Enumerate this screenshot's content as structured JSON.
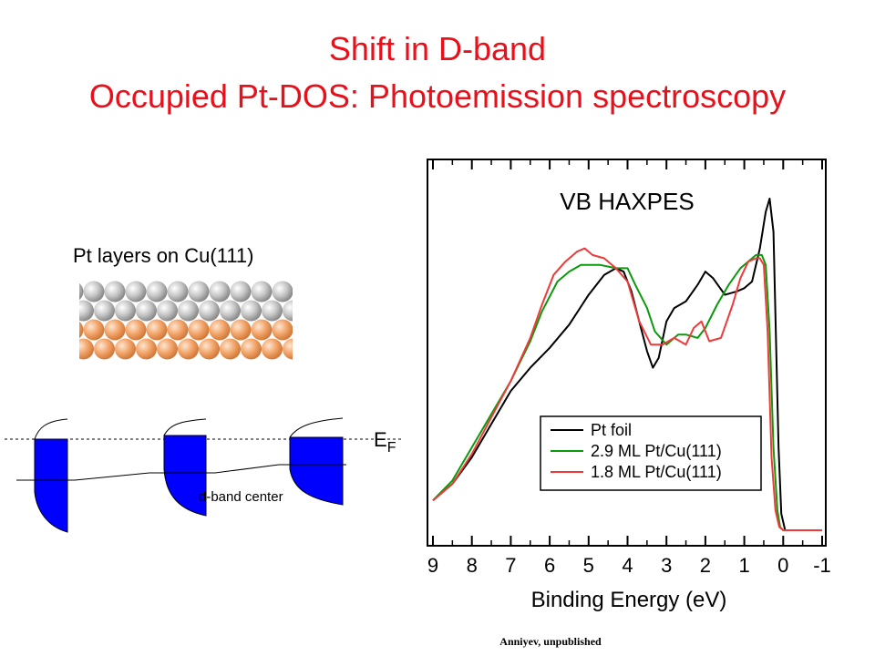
{
  "slide": {
    "title_line1": "Shift in D-band",
    "title_line2": "Occupied Pt-DOS: Photoemission spectroscopy",
    "credit": "Anniyev, unpublished",
    "title_color": "#e8101a"
  },
  "schematic": {
    "pt_label": "Pt layers on Cu(111)",
    "fermi_label_main": "E",
    "fermi_label_sub": "F",
    "dband_label": "d-band center",
    "band_color": "#0000ff",
    "pt_atom_color": "#b4b4b4",
    "cu_atom_color": "#f2a56b"
  },
  "chart_data": {
    "type": "line",
    "title": "VB HAXPES",
    "xlabel": "Binding Energy (eV)",
    "ylabel": "",
    "xlim": [
      9,
      -1
    ],
    "x_reversed": true,
    "xticks": [
      "9",
      "8",
      "7",
      "6",
      "5",
      "4",
      "3",
      "2",
      "1",
      "0",
      "-1"
    ],
    "xtick_values": [
      9,
      8,
      7,
      6,
      5,
      4,
      3,
      2,
      1,
      0,
      -1
    ],
    "ylim": [
      0,
      1
    ],
    "grid": false,
    "legend_position": "lower-right",
    "series": [
      {
        "name": "Pt foil",
        "color": "#000000",
        "x": [
          9.0,
          8.5,
          8.0,
          7.5,
          7.0,
          6.5,
          6.0,
          5.5,
          5.0,
          4.6,
          4.3,
          4.1,
          3.9,
          3.7,
          3.5,
          3.35,
          3.2,
          3.0,
          2.8,
          2.5,
          2.2,
          2.0,
          1.8,
          1.5,
          1.2,
          1.0,
          0.8,
          0.6,
          0.45,
          0.35,
          0.25,
          0.18,
          0.12,
          0.05,
          -0.05,
          -0.2,
          -0.5,
          -1.0
        ],
        "values": [
          0.09,
          0.14,
          0.22,
          0.32,
          0.42,
          0.49,
          0.55,
          0.62,
          0.71,
          0.77,
          0.79,
          0.78,
          0.72,
          0.63,
          0.54,
          0.49,
          0.52,
          0.63,
          0.67,
          0.69,
          0.74,
          0.78,
          0.76,
          0.71,
          0.72,
          0.73,
          0.75,
          0.85,
          0.96,
          1.0,
          0.9,
          0.55,
          0.25,
          0.05,
          0.0,
          0.0,
          0.0,
          0.0
        ]
      },
      {
        "name": "2.9 ML Pt/Cu(111)",
        "color": "#0b9a0b",
        "x": [
          9.0,
          8.5,
          8.0,
          7.5,
          7.0,
          6.5,
          6.2,
          5.8,
          5.5,
          5.2,
          5.0,
          4.7,
          4.3,
          4.0,
          3.8,
          3.5,
          3.3,
          3.0,
          2.7,
          2.5,
          2.2,
          2.0,
          1.7,
          1.4,
          1.1,
          0.9,
          0.7,
          0.55,
          0.45,
          0.35,
          0.25,
          0.15,
          0.08,
          0.0,
          -0.2,
          -0.5,
          -1.0
        ],
        "values": [
          0.09,
          0.15,
          0.25,
          0.35,
          0.45,
          0.57,
          0.66,
          0.75,
          0.78,
          0.8,
          0.8,
          0.8,
          0.79,
          0.79,
          0.74,
          0.67,
          0.6,
          0.56,
          0.59,
          0.59,
          0.58,
          0.61,
          0.68,
          0.74,
          0.79,
          0.81,
          0.83,
          0.83,
          0.8,
          0.6,
          0.25,
          0.06,
          0.01,
          0.0,
          0.0,
          0.0,
          0.0
        ]
      },
      {
        "name": "1.8 ML Pt/Cu(111)",
        "color": "#ee3a3a",
        "x": [
          9.0,
          8.5,
          8.0,
          7.5,
          7.0,
          6.5,
          6.2,
          5.9,
          5.6,
          5.3,
          5.1,
          4.9,
          4.6,
          4.3,
          4.0,
          3.7,
          3.4,
          3.1,
          2.8,
          2.5,
          2.3,
          2.1,
          1.9,
          1.6,
          1.3,
          1.1,
          0.9,
          0.7,
          0.6,
          0.5,
          0.4,
          0.3,
          0.2,
          0.1,
          0.0,
          -0.2,
          -0.5,
          -1.0
        ],
        "values": [
          0.09,
          0.14,
          0.23,
          0.34,
          0.45,
          0.58,
          0.68,
          0.77,
          0.81,
          0.84,
          0.85,
          0.83,
          0.82,
          0.79,
          0.75,
          0.63,
          0.56,
          0.56,
          0.58,
          0.56,
          0.61,
          0.63,
          0.57,
          0.58,
          0.68,
          0.76,
          0.81,
          0.82,
          0.82,
          0.8,
          0.6,
          0.22,
          0.06,
          0.01,
          0.0,
          0.0,
          0.0,
          0.0
        ]
      }
    ]
  }
}
